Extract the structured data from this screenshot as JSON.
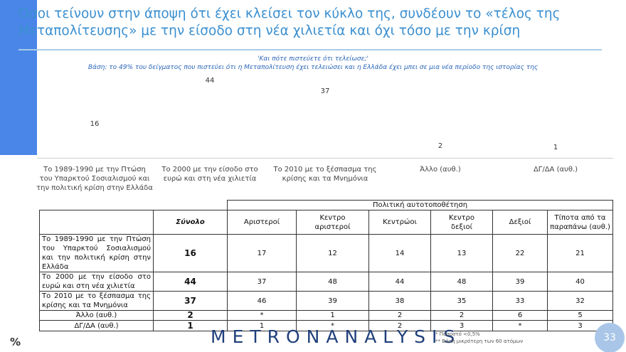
{
  "header": {
    "title": "Όσοι τείνουν στην άποψη ότι έχει κλείσει τον κύκλο της, συνδέουν το «τέλος της Μεταπολίτευσης» με την είσοδο στη νέα χιλιετία και όχι τόσο με την κρίση"
  },
  "chart_data": {
    "type": "bar",
    "title": "'Και πότε πιστεύετε ότι τελείωσε;'",
    "subtitle": "Βάση: το 49% του δείγματος που πιστεύει ότι η Μεταπολίτευση έχει τελειώσει και η Ελλάδα έχει μπει σε μια νέα περίοδο της ιστορίας της",
    "categories": [
      "Το 1989-1990 με την Πτώση του Υπαρκτού Σοσιαλισμού και την πολιτική κρίση στην Ελλάδα",
      "Το 2000 με την είσοδο στο ευρώ και στη νέα χιλιετία",
      "Το 2010 με το ξέσπασμα της κρίσης και τα Μνημόνια",
      "Άλλο (αυθ.)",
      "ΔΓ/ΔΑ (αυθ.)"
    ],
    "values": [
      16,
      44,
      37,
      2,
      1
    ],
    "color": "#4a86e8"
  },
  "table": {
    "group_header": "Πολιτική αυτοτοποθέτηση",
    "columns": [
      "Σύνολο",
      "Αριστεροί",
      "Κεντρο\nαριστεροί",
      "Κεντρώοι",
      "Κεντρο\nδεξιοί",
      "Δεξιοί",
      "Τίποτα από τα\nπαραπάνω (αυθ.)"
    ],
    "rows": [
      [
        "Το 1989-1990 με την Πτώση του Υπαρκτού Σοσιαλισμού και την πολιτική κρίση στην Ελλάδα",
        16,
        17,
        12,
        14,
        13,
        22,
        21
      ],
      [
        "Το 2000 με την είσοδο στο ευρώ και στη νέα χιλιετία",
        44,
        37,
        48,
        44,
        48,
        39,
        40
      ],
      [
        "Το 2010 με το ξέσπασμα της κρίσης και τα Μνημόνια",
        37,
        46,
        39,
        38,
        35,
        33,
        32
      ],
      [
        "Άλλο (αυθ.)",
        2,
        "*",
        1,
        2,
        2,
        6,
        5
      ],
      [
        "ΔΓ/ΔΑ (αυθ.)",
        1,
        1,
        "*",
        2,
        3,
        "*",
        3
      ]
    ]
  },
  "footer": {
    "unit": "%",
    "logo": "METRONANALYSIS",
    "notes": [
      "* Ποσοστό <0,5%",
      "** Βάση μικρότερη των 60 ατόμων"
    ],
    "page": 33
  }
}
